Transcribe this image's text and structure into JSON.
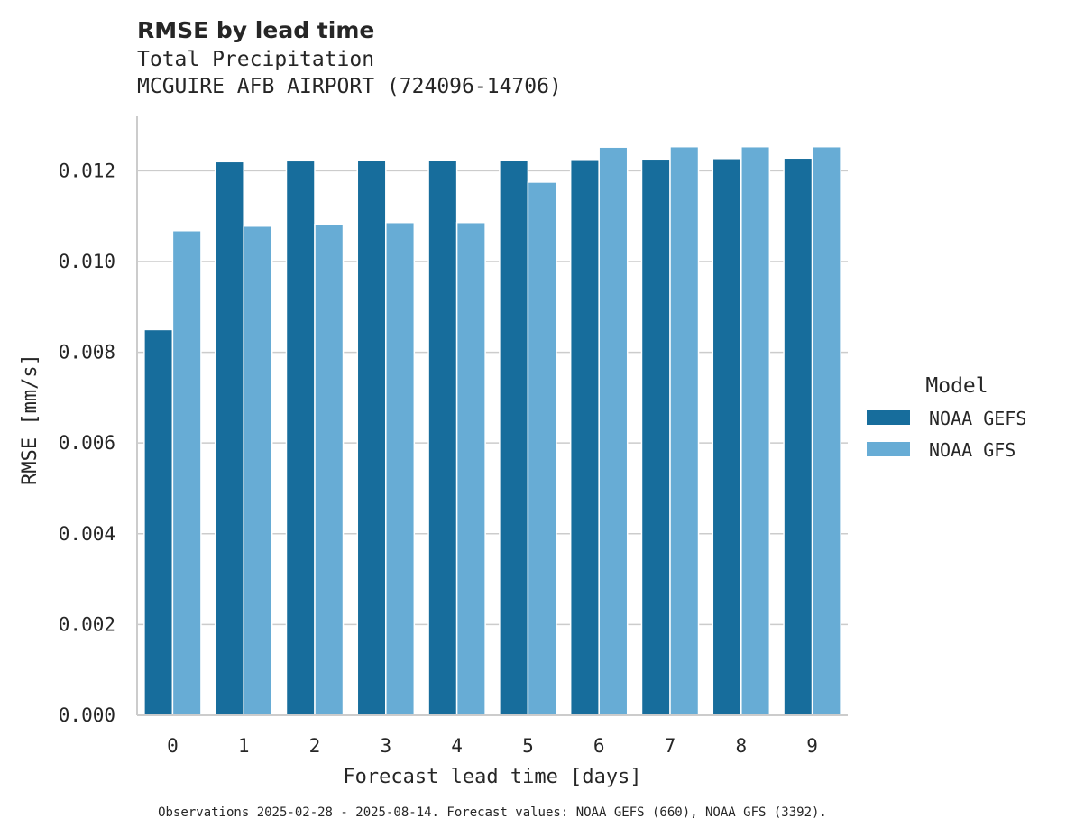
{
  "chart_data": {
    "type": "bar",
    "title": "RMSE by lead time",
    "subtitle_lines": [
      "Total Precipitation",
      "MCGUIRE AFB AIRPORT (724096-14706)"
    ],
    "xlabel": "Forecast lead time [days]",
    "ylabel": "RMSE [mm/s]",
    "categories": [
      "0",
      "1",
      "2",
      "3",
      "4",
      "5",
      "6",
      "7",
      "8",
      "9"
    ],
    "ylim": [
      0,
      0.0132
    ],
    "yticks": [
      0.0,
      0.002,
      0.004,
      0.006,
      0.008,
      0.01,
      0.012
    ],
    "ytick_labels": [
      "0.000",
      "0.002",
      "0.004",
      "0.006",
      "0.008",
      "0.010",
      "0.012"
    ],
    "grid": true,
    "legend": {
      "title": "Model",
      "position": "right"
    },
    "series": [
      {
        "name": "NOAA GEFS",
        "color": "#176d9c",
        "values": [
          0.0085,
          0.0122,
          0.01222,
          0.01223,
          0.01224,
          0.01224,
          0.01225,
          0.01226,
          0.01227,
          0.01228
        ]
      },
      {
        "name": "NOAA GFS",
        "color": "#67acd5",
        "values": [
          0.01068,
          0.01078,
          0.01082,
          0.01086,
          0.01086,
          0.01175,
          0.01252,
          0.01253,
          0.01253,
          0.01253
        ]
      }
    ],
    "caption": "Observations 2025-02-28 - 2025-08-14. Forecast values: NOAA GEFS (660), NOAA GFS (3392)."
  }
}
